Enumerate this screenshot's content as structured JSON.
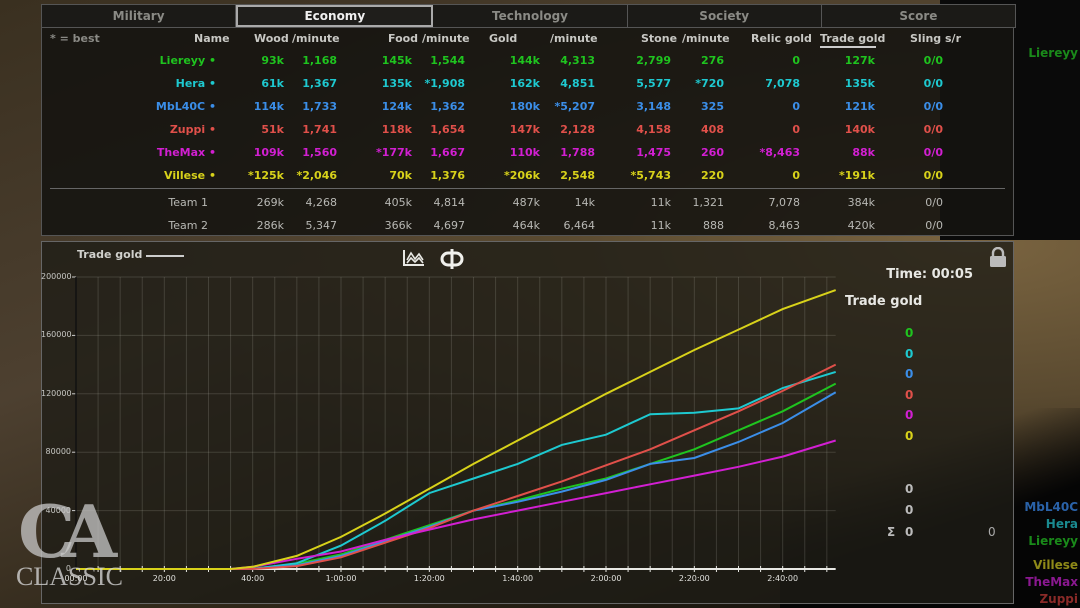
{
  "tabs": [
    {
      "label": "Military",
      "active": false
    },
    {
      "label": "Economy",
      "active": true
    },
    {
      "label": "Technology",
      "active": false
    },
    {
      "label": "Society",
      "active": false
    },
    {
      "label": "Score",
      "active": false
    }
  ],
  "stats": {
    "best_note": "* = best",
    "columns": [
      "Name",
      "Wood",
      "/minute",
      "Food",
      "/minute",
      "Gold",
      "/minute",
      "Stone",
      "/minute",
      "Relic gold",
      "Trade gold",
      "Sling s/r"
    ],
    "sorted_column": "Trade gold",
    "players": [
      {
        "name": "Liereyy •",
        "color": "#1fc41f",
        "wood": "93k",
        "wood_pm": "1,168",
        "food": "145k",
        "food_pm": "1,544",
        "gold": "144k",
        "gold_pm": "4,313",
        "stone": "2,799",
        "stone_pm": "276",
        "relic_gold": "0",
        "trade_gold": "127k",
        "sling": "0/0"
      },
      {
        "name": "Hera •",
        "color": "#1ec9d0",
        "wood": "61k",
        "wood_pm": "1,367",
        "food": "135k",
        "food_pm": "*1,908",
        "gold": "162k",
        "gold_pm": "4,851",
        "stone": "5,577",
        "stone_pm": "*720",
        "relic_gold": "7,078",
        "trade_gold": "135k",
        "sling": "0/0"
      },
      {
        "name": "MbL40C •",
        "color": "#3b8ee8",
        "wood": "114k",
        "wood_pm": "1,733",
        "food": "124k",
        "food_pm": "1,362",
        "gold": "180k",
        "gold_pm": "*5,207",
        "stone": "3,148",
        "stone_pm": "325",
        "relic_gold": "0",
        "trade_gold": "121k",
        "sling": "0/0"
      },
      {
        "name": "Zuppi •",
        "color": "#e0504a",
        "wood": "51k",
        "wood_pm": "1,741",
        "food": "118k",
        "food_pm": "1,654",
        "gold": "147k",
        "gold_pm": "2,128",
        "stone": "4,158",
        "stone_pm": "408",
        "relic_gold": "0",
        "trade_gold": "140k",
        "sling": "0/0"
      },
      {
        "name": "TheMax •",
        "color": "#d21fd2",
        "wood": "109k",
        "wood_pm": "1,560",
        "food": "*177k",
        "food_pm": "1,667",
        "gold": "110k",
        "gold_pm": "1,788",
        "stone": "1,475",
        "stone_pm": "260",
        "relic_gold": "*8,463",
        "trade_gold": "88k",
        "sling": "0/0"
      },
      {
        "name": "Villese •",
        "color": "#d8d21a",
        "wood": "*125k",
        "wood_pm": "*2,046",
        "food": "70k",
        "food_pm": "1,376",
        "gold": "*206k",
        "gold_pm": "2,548",
        "stone": "*5,743",
        "stone_pm": "220",
        "relic_gold": "0",
        "trade_gold": "*191k",
        "sling": "0/0"
      }
    ],
    "teams": [
      {
        "name": "Team 1",
        "wood": "269k",
        "wood_pm": "4,268",
        "food": "405k",
        "food_pm": "4,814",
        "gold": "487k",
        "gold_pm": "14k",
        "stone": "11k",
        "stone_pm": "1,321",
        "relic_gold": "7,078",
        "trade_gold": "384k",
        "sling": "0/0"
      },
      {
        "name": "Team 2",
        "wood": "286k",
        "wood_pm": "5,347",
        "food": "366k",
        "food_pm": "4,697",
        "gold": "464k",
        "gold_pm": "6,464",
        "stone": "11k",
        "stone_pm": "888",
        "relic_gold": "8,463",
        "trade_gold": "420k",
        "sling": "0/0"
      }
    ]
  },
  "graph": {
    "title": "Trade gold",
    "time_label": "Time: 00:05",
    "panel_title": "Trade gold",
    "player_values": [
      {
        "value": "0",
        "color": "#1fc41f"
      },
      {
        "value": "0",
        "color": "#1ec9d0"
      },
      {
        "value": "0",
        "color": "#3b8ee8"
      },
      {
        "value": "0",
        "color": "#e0504a"
      },
      {
        "value": "0",
        "color": "#d21fd2"
      },
      {
        "value": "0",
        "color": "#d8d21a"
      }
    ],
    "team_values": [
      "0",
      "0"
    ],
    "sigma_symbol": "Σ",
    "sigma_value": "0",
    "sigma_value_right": "0",
    "icons": [
      "line-chart-icon",
      "split-view-icon",
      "lock-icon"
    ]
  },
  "side_names": [
    {
      "name": "Liereyy",
      "color": "#1a8a1a"
    },
    {
      "name": "MbL40C",
      "color": "#2a62a8"
    },
    {
      "name": "Hera",
      "color": "#1a8a90"
    },
    {
      "name": "Liereyy",
      "color": "#1a8a1a"
    },
    {
      "name": "Villese",
      "color": "#8f8a18"
    },
    {
      "name": "TheMax",
      "color": "#8a1890"
    },
    {
      "name": "Zuppi",
      "color": "#8a2a28"
    }
  ],
  "logo": {
    "mark": "CA",
    "text": "CLASSIC"
  },
  "chart_data": {
    "type": "line",
    "title": "Trade gold",
    "xlabel": "Time",
    "ylabel": "Trade gold",
    "x_tick_labels": [
      "00:00",
      "20:00",
      "40:00",
      "1:00:00",
      "1:20:00",
      "1:40:00",
      "2:00:00",
      "2:20:00",
      "2:40:00"
    ],
    "y_tick_labels": [
      "0",
      "40000",
      "80000",
      "120000",
      "160000",
      "200000"
    ],
    "ylim": [
      0,
      200000
    ],
    "xlim_minutes": [
      0,
      172
    ],
    "grid": true,
    "x_minutes": [
      0,
      35,
      40,
      50,
      60,
      70,
      80,
      90,
      100,
      110,
      120,
      130,
      140,
      150,
      160,
      172
    ],
    "series": [
      {
        "name": "Liereyy",
        "color": "#1fc41f",
        "values": [
          0,
          0,
          200,
          3500,
          10000,
          20000,
          30000,
          40000,
          47000,
          55000,
          62000,
          72000,
          82000,
          95000,
          108000,
          127000
        ]
      },
      {
        "name": "Hera",
        "color": "#1ec9d0",
        "values": [
          0,
          0,
          100,
          4000,
          16000,
          33000,
          52000,
          62000,
          72000,
          85000,
          92000,
          106000,
          107000,
          110000,
          124000,
          135000
        ]
      },
      {
        "name": "MbL40C",
        "color": "#3b8ee8",
        "values": [
          0,
          0,
          100,
          2500,
          9000,
          19000,
          29000,
          40000,
          46000,
          53000,
          61000,
          72000,
          76000,
          87000,
          100000,
          121000
        ]
      },
      {
        "name": "Zuppi",
        "color": "#e0504a",
        "values": [
          0,
          0,
          100,
          2000,
          8000,
          18000,
          28000,
          40000,
          50000,
          60000,
          71000,
          82000,
          95000,
          108000,
          122000,
          140000
        ]
      },
      {
        "name": "TheMax",
        "color": "#d21fd2",
        "values": [
          0,
          0,
          1500,
          7000,
          12000,
          20000,
          27000,
          34000,
          40000,
          46000,
          52000,
          58000,
          64000,
          70000,
          77000,
          88000
        ]
      },
      {
        "name": "Villese",
        "color": "#d8d21a",
        "values": [
          0,
          0,
          1500,
          9000,
          22000,
          38000,
          55000,
          72000,
          88000,
          104000,
          120000,
          135000,
          150000,
          164000,
          178000,
          191000
        ]
      }
    ]
  }
}
